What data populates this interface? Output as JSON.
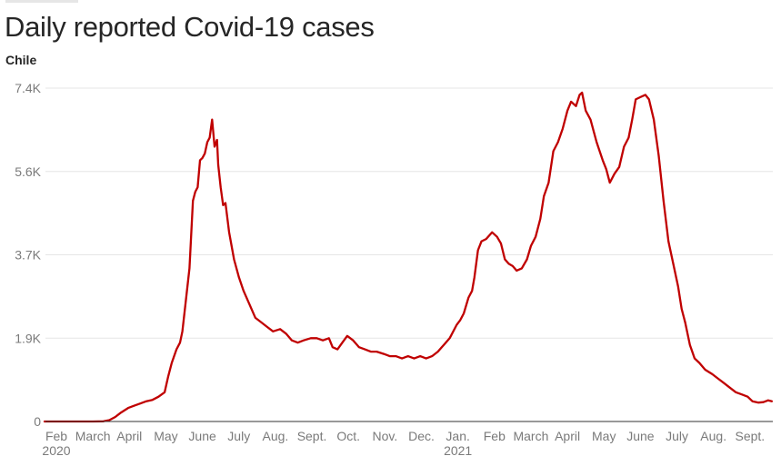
{
  "header": {
    "title": "Daily reported Covid-19 cases",
    "subtitle": "Chile"
  },
  "chart_data": {
    "type": "line",
    "title": "Daily reported Covid-19 cases",
    "subtitle": "Chile",
    "xlabel": "",
    "ylabel": "",
    "ylim": [
      0,
      7400
    ],
    "y_ticks": [
      {
        "value": 0,
        "label": "0"
      },
      {
        "value": 1850,
        "label": "1.9K"
      },
      {
        "value": 3700,
        "label": "3.7K"
      },
      {
        "value": 5550,
        "label": "5.6K"
      },
      {
        "value": 7400,
        "label": "7.4K"
      }
    ],
    "x_ticks": [
      {
        "month": 1,
        "label": "Feb",
        "year_label": "2020"
      },
      {
        "month": 2,
        "label": "March"
      },
      {
        "month": 3,
        "label": "April"
      },
      {
        "month": 4,
        "label": "May"
      },
      {
        "month": 5,
        "label": "June"
      },
      {
        "month": 6,
        "label": "July"
      },
      {
        "month": 7,
        "label": "Aug."
      },
      {
        "month": 8,
        "label": "Sept."
      },
      {
        "month": 9,
        "label": "Oct."
      },
      {
        "month": 10,
        "label": "Nov."
      },
      {
        "month": 11,
        "label": "Dec."
      },
      {
        "month": 12,
        "label": "Jan.",
        "year_label": "2021"
      },
      {
        "month": 13,
        "label": "Feb"
      },
      {
        "month": 14,
        "label": "March"
      },
      {
        "month": 15,
        "label": "April"
      },
      {
        "month": 16,
        "label": "May"
      },
      {
        "month": 17,
        "label": "June"
      },
      {
        "month": 18,
        "label": "July"
      },
      {
        "month": 19,
        "label": "Aug."
      },
      {
        "month": 20,
        "label": "Sept."
      }
    ],
    "grid": true,
    "colors": {
      "line": "#c00000",
      "grid": "#e6e6e6",
      "axis": "#333333",
      "tick_text": "#7a7a7a"
    },
    "series": [
      {
        "values": [
          [
            "2020-01-22",
            0
          ],
          [
            "2020-02-15",
            0
          ],
          [
            "2020-03-01",
            0
          ],
          [
            "2020-03-10",
            5
          ],
          [
            "2020-03-15",
            30
          ],
          [
            "2020-03-20",
            100
          ],
          [
            "2020-03-25",
            200
          ],
          [
            "2020-03-31",
            300
          ],
          [
            "2020-04-05",
            350
          ],
          [
            "2020-04-10",
            400
          ],
          [
            "2020-04-15",
            450
          ],
          [
            "2020-04-20",
            480
          ],
          [
            "2020-04-25",
            550
          ],
          [
            "2020-04-30",
            650
          ],
          [
            "2020-05-03",
            1000
          ],
          [
            "2020-05-06",
            1300
          ],
          [
            "2020-05-10",
            1600
          ],
          [
            "2020-05-13",
            1750
          ],
          [
            "2020-05-15",
            2000
          ],
          [
            "2020-05-18",
            2700
          ],
          [
            "2020-05-21",
            3400
          ],
          [
            "2020-05-24",
            4900
          ],
          [
            "2020-05-26",
            5100
          ],
          [
            "2020-05-28",
            5200
          ],
          [
            "2020-05-30",
            5800
          ],
          [
            "2020-06-01",
            5850
          ],
          [
            "2020-06-03",
            5950
          ],
          [
            "2020-06-05",
            6200
          ],
          [
            "2020-06-07",
            6300
          ],
          [
            "2020-06-09",
            6700
          ],
          [
            "2020-06-11",
            6100
          ],
          [
            "2020-06-13",
            6250
          ],
          [
            "2020-06-14",
            5700
          ],
          [
            "2020-06-16",
            5200
          ],
          [
            "2020-06-18",
            4800
          ],
          [
            "2020-06-20",
            4850
          ],
          [
            "2020-06-23",
            4200
          ],
          [
            "2020-06-27",
            3600
          ],
          [
            "2020-07-01",
            3200
          ],
          [
            "2020-07-05",
            2900
          ],
          [
            "2020-07-10",
            2600
          ],
          [
            "2020-07-15",
            2300
          ],
          [
            "2020-07-20",
            2200
          ],
          [
            "2020-07-25",
            2100
          ],
          [
            "2020-07-30",
            2000
          ],
          [
            "2020-08-05",
            2050
          ],
          [
            "2020-08-10",
            1950
          ],
          [
            "2020-08-15",
            1800
          ],
          [
            "2020-08-20",
            1750
          ],
          [
            "2020-08-25",
            1800
          ],
          [
            "2020-08-31",
            1850
          ],
          [
            "2020-09-05",
            1850
          ],
          [
            "2020-09-10",
            1800
          ],
          [
            "2020-09-15",
            1850
          ],
          [
            "2020-09-18",
            1650
          ],
          [
            "2020-09-22",
            1600
          ],
          [
            "2020-09-26",
            1750
          ],
          [
            "2020-09-30",
            1900
          ],
          [
            "2020-10-05",
            1800
          ],
          [
            "2020-10-10",
            1650
          ],
          [
            "2020-10-15",
            1600
          ],
          [
            "2020-10-20",
            1550
          ],
          [
            "2020-10-25",
            1550
          ],
          [
            "2020-10-31",
            1500
          ],
          [
            "2020-11-05",
            1450
          ],
          [
            "2020-11-10",
            1450
          ],
          [
            "2020-11-15",
            1400
          ],
          [
            "2020-11-20",
            1450
          ],
          [
            "2020-11-25",
            1400
          ],
          [
            "2020-11-30",
            1450
          ],
          [
            "2020-12-05",
            1400
          ],
          [
            "2020-12-10",
            1450
          ],
          [
            "2020-12-15",
            1550
          ],
          [
            "2020-12-20",
            1700
          ],
          [
            "2020-12-25",
            1850
          ],
          [
            "2020-12-31",
            2150
          ],
          [
            "2021-01-03",
            2250
          ],
          [
            "2021-01-06",
            2400
          ],
          [
            "2021-01-10",
            2750
          ],
          [
            "2021-01-13",
            2900
          ],
          [
            "2021-01-15",
            3200
          ],
          [
            "2021-01-18",
            3800
          ],
          [
            "2021-01-21",
            4000
          ],
          [
            "2021-01-25",
            4050
          ],
          [
            "2021-01-30",
            4200
          ],
          [
            "2021-02-03",
            4100
          ],
          [
            "2021-02-06",
            3950
          ],
          [
            "2021-02-09",
            3600
          ],
          [
            "2021-02-12",
            3500
          ],
          [
            "2021-02-15",
            3450
          ],
          [
            "2021-02-18",
            3350
          ],
          [
            "2021-02-22",
            3400
          ],
          [
            "2021-02-26",
            3600
          ],
          [
            "2021-03-01",
            3900
          ],
          [
            "2021-03-05",
            4100
          ],
          [
            "2021-03-09",
            4500
          ],
          [
            "2021-03-12",
            5000
          ],
          [
            "2021-03-16",
            5300
          ],
          [
            "2021-03-20",
            6000
          ],
          [
            "2021-03-24",
            6200
          ],
          [
            "2021-03-28",
            6500
          ],
          [
            "2021-04-01",
            6900
          ],
          [
            "2021-04-04",
            7100
          ],
          [
            "2021-04-08",
            7000
          ],
          [
            "2021-04-11",
            7250
          ],
          [
            "2021-04-13",
            7300
          ],
          [
            "2021-04-16",
            6900
          ],
          [
            "2021-04-20",
            6700
          ],
          [
            "2021-04-25",
            6200
          ],
          [
            "2021-04-30",
            5800
          ],
          [
            "2021-05-03",
            5600
          ],
          [
            "2021-05-06",
            5300
          ],
          [
            "2021-05-10",
            5500
          ],
          [
            "2021-05-14",
            5650
          ],
          [
            "2021-05-18",
            6100
          ],
          [
            "2021-05-22",
            6300
          ],
          [
            "2021-05-25",
            6700
          ],
          [
            "2021-05-28",
            7150
          ],
          [
            "2021-06-01",
            7200
          ],
          [
            "2021-06-05",
            7250
          ],
          [
            "2021-06-08",
            7150
          ],
          [
            "2021-06-12",
            6700
          ],
          [
            "2021-06-16",
            5900
          ],
          [
            "2021-06-20",
            4900
          ],
          [
            "2021-06-24",
            4000
          ],
          [
            "2021-06-28",
            3500
          ],
          [
            "2021-07-02",
            3000
          ],
          [
            "2021-07-05",
            2500
          ],
          [
            "2021-07-08",
            2200
          ],
          [
            "2021-07-12",
            1700
          ],
          [
            "2021-07-16",
            1400
          ],
          [
            "2021-07-20",
            1300
          ],
          [
            "2021-07-25",
            1150
          ],
          [
            "2021-07-31",
            1050
          ],
          [
            "2021-08-05",
            950
          ],
          [
            "2021-08-10",
            850
          ],
          [
            "2021-08-15",
            750
          ],
          [
            "2021-08-20",
            650
          ],
          [
            "2021-08-25",
            600
          ],
          [
            "2021-08-30",
            550
          ],
          [
            "2021-09-03",
            450
          ],
          [
            "2021-09-08",
            420
          ],
          [
            "2021-09-12",
            430
          ],
          [
            "2021-09-16",
            470
          ],
          [
            "2021-09-19",
            450
          ]
        ]
      }
    ]
  }
}
